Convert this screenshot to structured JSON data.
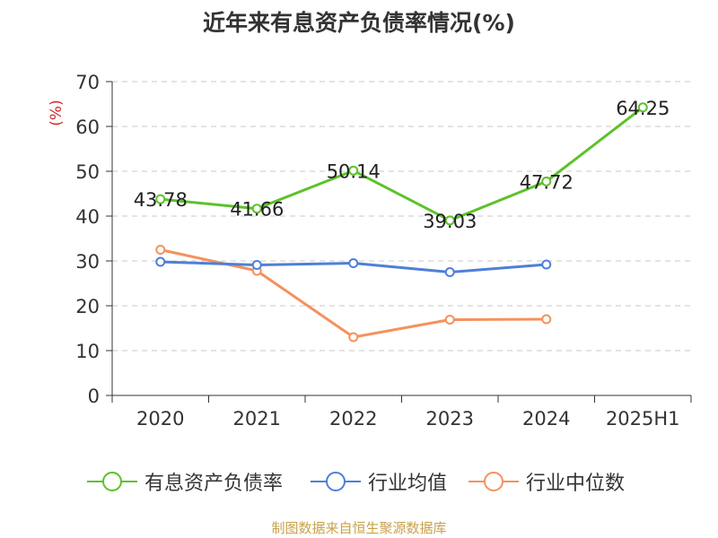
{
  "chart_data": {
    "type": "line",
    "title": "近年来有息资产负债率情况(%)",
    "ylabel": "(%)",
    "categories": [
      "2020",
      "2021",
      "2022",
      "2023",
      "2024",
      "2025H1"
    ],
    "ylim": [
      0,
      70
    ],
    "yticks": [
      0,
      10,
      20,
      30,
      40,
      50,
      60,
      70
    ],
    "grid": true,
    "legend_position": "bottom",
    "series": [
      {
        "name": "有息资产负债率",
        "color": "#5cc22a",
        "show_labels": true,
        "values": [
          43.78,
          41.66,
          50.14,
          39.03,
          47.72,
          64.25
        ]
      },
      {
        "name": "行业均值",
        "color": "#4e7fd9",
        "show_labels": false,
        "values": [
          29.8,
          29.1,
          29.5,
          27.5,
          29.2,
          null
        ]
      },
      {
        "name": "行业中位数",
        "color": "#f5915e",
        "show_labels": false,
        "values": [
          32.5,
          27.8,
          13.0,
          16.9,
          17.0,
          null
        ]
      }
    ],
    "source": "制图数据来自恒生聚源数据库"
  }
}
